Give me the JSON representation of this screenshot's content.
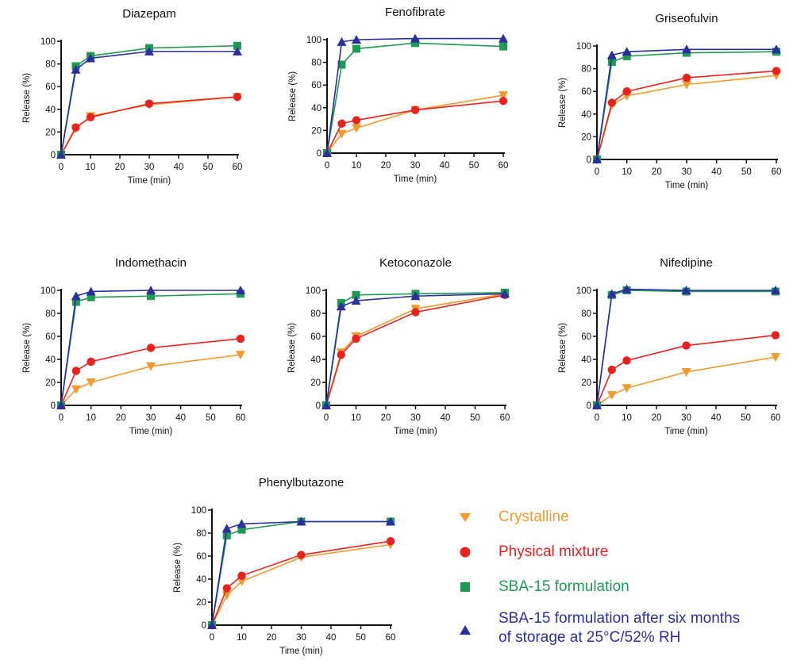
{
  "colors": {
    "crystalline": "#f29a2e",
    "physical_mixture": "#e8231f",
    "sba15": "#1e9a52",
    "sba15_stored": "#2b2f9e",
    "axis": "#111111"
  },
  "legend": [
    {
      "series_key": "crystalline",
      "marker": "triangle-down",
      "label": "Crystalline"
    },
    {
      "series_key": "physical_mixture",
      "marker": "circle",
      "label": "Physical mixture"
    },
    {
      "series_key": "sba15",
      "marker": "square",
      "label": "SBA-15 formulation"
    },
    {
      "series_key": "sba15_stored",
      "marker": "triangle-up",
      "label": "SBA-15 formulation after six months",
      "label_line2": "of storage at 25°C/52% RH"
    }
  ],
  "chart_data": [
    {
      "type": "line",
      "title": "Diazepam",
      "xlabel": "Time (min)",
      "ylabel": "Release (%)",
      "xlim": [
        0,
        60
      ],
      "ylim": [
        0,
        100
      ],
      "xticks": [
        "0",
        "10",
        "20",
        "30",
        "40",
        "50",
        "60"
      ],
      "yticks": [
        "0",
        "20",
        "40",
        "60",
        "80",
        "100"
      ],
      "x": [
        0,
        5,
        10,
        30,
        60
      ],
      "series": [
        {
          "key": "crystalline",
          "name": "Crystalline",
          "values": [
            0,
            23,
            34,
            44,
            51
          ]
        },
        {
          "key": "physical_mixture",
          "name": "Physical mixture",
          "values": [
            0,
            24,
            33,
            45,
            51
          ]
        },
        {
          "key": "sba15",
          "name": "SBA-15 formulation",
          "values": [
            0,
            78,
            87,
            94,
            96
          ]
        },
        {
          "key": "sba15_stored",
          "name": "SBA-15 formulation after six months of storage at 25°C/52% RH",
          "values": [
            0,
            75,
            85,
            91,
            91
          ]
        }
      ]
    },
    {
      "type": "line",
      "title": "Fenofibrate",
      "xlabel": "Time (min)",
      "ylabel": "Release (%)",
      "xlim": [
        0,
        60
      ],
      "ylim": [
        0,
        100
      ],
      "xticks": [
        "0",
        "10",
        "20",
        "30",
        "40",
        "50",
        "60"
      ],
      "yticks": [
        "0",
        "20",
        "40",
        "60",
        "80",
        "100"
      ],
      "x": [
        0,
        5,
        10,
        30,
        60
      ],
      "series": [
        {
          "key": "crystalline",
          "name": "Crystalline",
          "values": [
            0,
            17,
            22,
            38,
            51
          ]
        },
        {
          "key": "physical_mixture",
          "name": "Physical mixture",
          "values": [
            0,
            26,
            29,
            38,
            46
          ]
        },
        {
          "key": "sba15",
          "name": "SBA-15 formulation",
          "values": [
            0,
            78,
            92,
            97,
            94
          ]
        },
        {
          "key": "sba15_stored",
          "name": "SBA-15 formulation after six months of storage at 25°C/52% RH",
          "values": [
            0,
            98,
            100,
            101,
            101
          ]
        }
      ]
    },
    {
      "type": "line",
      "title": "Griseofulvin",
      "xlabel": "Time (min)",
      "ylabel": "Release (%)",
      "xlim": [
        0,
        60
      ],
      "ylim": [
        0,
        100
      ],
      "xticks": [
        "0",
        "10",
        "20",
        "30",
        "40",
        "50",
        "60"
      ],
      "yticks": [
        "0",
        "20",
        "40",
        "60",
        "80",
        "100"
      ],
      "x": [
        0,
        5,
        10,
        30,
        60
      ],
      "series": [
        {
          "key": "crystalline",
          "name": "Crystalline",
          "values": [
            0,
            48,
            56,
            66,
            74
          ]
        },
        {
          "key": "physical_mixture",
          "name": "Physical mixture",
          "values": [
            0,
            50,
            60,
            72,
            78
          ]
        },
        {
          "key": "sba15",
          "name": "SBA-15 formulation",
          "values": [
            0,
            86,
            91,
            94,
            95
          ]
        },
        {
          "key": "sba15_stored",
          "name": "SBA-15 formulation after six months of storage at 25°C/52% RH",
          "values": [
            0,
            92,
            95,
            97,
            97
          ]
        }
      ]
    },
    {
      "type": "line",
      "title": "Indomethacin",
      "xlabel": "Time (min)",
      "ylabel": "Release (%)",
      "xlim": [
        0,
        60
      ],
      "ylim": [
        0,
        100
      ],
      "xticks": [
        "0",
        "10",
        "20",
        "30",
        "40",
        "50",
        "60"
      ],
      "yticks": [
        "0",
        "20",
        "40",
        "60",
        "80",
        "100"
      ],
      "x": [
        0,
        5,
        10,
        30,
        60
      ],
      "series": [
        {
          "key": "crystalline",
          "name": "Crystalline",
          "values": [
            0,
            14,
            20,
            34,
            44
          ]
        },
        {
          "key": "physical_mixture",
          "name": "Physical mixture",
          "values": [
            0,
            30,
            38,
            50,
            58
          ]
        },
        {
          "key": "sba15",
          "name": "SBA-15 formulation",
          "values": [
            0,
            90,
            94,
            95,
            97
          ]
        },
        {
          "key": "sba15_stored",
          "name": "SBA-15 formulation after six months of storage at 25°C/52% RH",
          "values": [
            0,
            95,
            99,
            100,
            100
          ]
        }
      ]
    },
    {
      "type": "line",
      "title": "Ketoconazole",
      "xlabel": "Time (min)",
      "ylabel": "Release (%)",
      "xlim": [
        0,
        60
      ],
      "ylim": [
        0,
        100
      ],
      "xticks": [
        "0",
        "10",
        "20",
        "30",
        "40",
        "50",
        "60"
      ],
      "yticks": [
        "0",
        "20",
        "40",
        "60",
        "80",
        "100"
      ],
      "x": [
        0,
        5,
        10,
        30,
        60
      ],
      "series": [
        {
          "key": "crystalline",
          "name": "Crystalline",
          "values": [
            0,
            46,
            60,
            84,
            97
          ]
        },
        {
          "key": "physical_mixture",
          "name": "Physical mixture",
          "values": [
            0,
            44,
            58,
            81,
            96
          ]
        },
        {
          "key": "sba15",
          "name": "SBA-15 formulation",
          "values": [
            0,
            89,
            96,
            97,
            98
          ]
        },
        {
          "key": "sba15_stored",
          "name": "SBA-15 formulation after six months of storage at 25°C/52% RH",
          "values": [
            0,
            86,
            91,
            95,
            97
          ]
        }
      ]
    },
    {
      "type": "line",
      "title": "Nifedipine",
      "xlabel": "Time (min)",
      "ylabel": "Release (%)",
      "xlim": [
        0,
        60
      ],
      "ylim": [
        0,
        100
      ],
      "xticks": [
        "0",
        "10",
        "20",
        "30",
        "40",
        "50",
        "60"
      ],
      "yticks": [
        "0",
        "20",
        "40",
        "60",
        "80",
        "100"
      ],
      "x": [
        0,
        5,
        10,
        30,
        60
      ],
      "series": [
        {
          "key": "crystalline",
          "name": "Crystalline",
          "values": [
            0,
            9,
            15,
            29,
            42
          ]
        },
        {
          "key": "physical_mixture",
          "name": "Physical mixture",
          "values": [
            0,
            31,
            39,
            52,
            61
          ]
        },
        {
          "key": "sba15",
          "name": "SBA-15 formulation",
          "values": [
            0,
            96,
            100,
            99,
            99
          ]
        },
        {
          "key": "sba15_stored",
          "name": "SBA-15 formulation after six months of storage at 25°C/52% RH",
          "values": [
            0,
            97,
            101,
            100,
            100
          ]
        }
      ]
    },
    {
      "type": "line",
      "title": "Phenylbutazone",
      "xlabel": "Time (min)",
      "ylabel": "Release (%)",
      "xlim": [
        0,
        60
      ],
      "ylim": [
        0,
        100
      ],
      "xticks": [
        "0",
        "10",
        "20",
        "30",
        "40",
        "50",
        "60"
      ],
      "yticks": [
        "0",
        "20",
        "40",
        "60",
        "80",
        "100"
      ],
      "x": [
        0,
        5,
        10,
        30,
        60
      ],
      "series": [
        {
          "key": "crystalline",
          "name": "Crystalline",
          "values": [
            0,
            26,
            38,
            59,
            70
          ]
        },
        {
          "key": "physical_mixture",
          "name": "Physical mixture",
          "values": [
            0,
            32,
            43,
            61,
            73
          ]
        },
        {
          "key": "sba15",
          "name": "SBA-15 formulation",
          "values": [
            0,
            78,
            83,
            90,
            90
          ]
        },
        {
          "key": "sba15_stored",
          "name": "SBA-15 formulation after six months of storage at 25°C/52% RH",
          "values": [
            0,
            84,
            88,
            90,
            90
          ]
        }
      ]
    }
  ]
}
